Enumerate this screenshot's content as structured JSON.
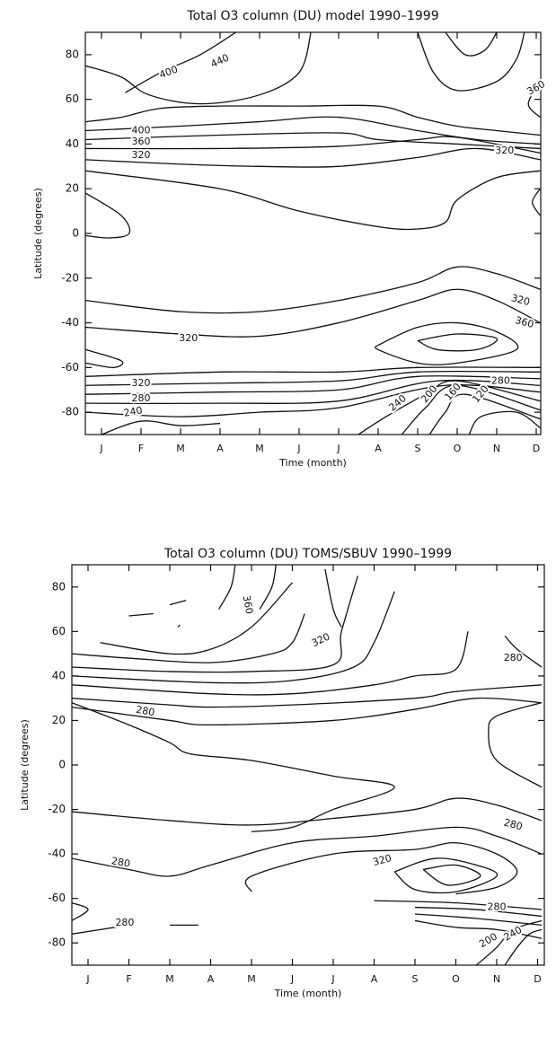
{
  "chart_data": [
    {
      "type": "contour",
      "title": "Total O3 column (DU) model 1990–1999",
      "xlabel": "Time (month)",
      "ylabel": "Latitude (degrees)",
      "categories": [
        "J",
        "F",
        "M",
        "A",
        "M",
        "J",
        "J",
        "A",
        "S",
        "O",
        "N",
        "D"
      ],
      "ylim": [
        -90,
        90
      ],
      "yticks": [
        -80,
        -60,
        -40,
        -20,
        0,
        20,
        40,
        60,
        80
      ],
      "contour_labels": [
        400,
        440,
        360,
        400,
        360,
        320,
        320,
        320,
        360,
        320,
        320,
        280,
        240,
        240,
        200,
        160,
        120,
        280
      ]
    },
    {
      "type": "contour",
      "title": "Total O3 column (DU) TOMS/SBUV 1990–1999",
      "xlabel": "Time (month)",
      "ylabel": "Latitude (degrees)",
      "categories": [
        "J",
        "F",
        "M",
        "A",
        "M",
        "J",
        "J",
        "A",
        "S",
        "O",
        "N",
        "D"
      ],
      "ylim": [
        -90,
        90
      ],
      "yticks": [
        -80,
        -60,
        -40,
        -20,
        0,
        20,
        40,
        60,
        80
      ],
      "contour_labels": [
        360,
        320,
        280,
        280,
        280,
        280,
        320,
        280,
        280,
        200,
        240
      ]
    }
  ]
}
